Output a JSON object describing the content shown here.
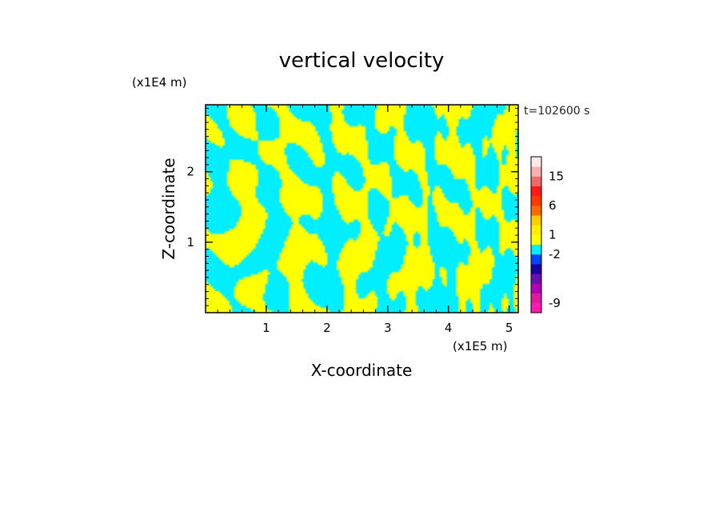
{
  "chart_data": {
    "type": "heatmap",
    "title": "vertical velocity",
    "xlabel": "X-coordinate",
    "ylabel": "Z-coordinate",
    "x_unit": "(x1E5 m)",
    "y_unit": "(x1E4 m)",
    "timestamp": "t=102600 s",
    "xlim": [
      0,
      5.15
    ],
    "ylim": [
      0,
      2.95
    ],
    "x_ticks": [
      1,
      2,
      3,
      4,
      5
    ],
    "y_ticks": [
      1,
      2
    ],
    "x_tick_labels": [
      "1",
      "2",
      "3",
      "4",
      "5"
    ],
    "y_tick_labels": [
      "1",
      "2"
    ],
    "field_colors": {
      "positive": "#ffff00",
      "negative": "#00eeff"
    },
    "colorbar": {
      "bins": [
        {
          "color": "#ff1ab0"
        },
        {
          "color": "#e01a9a"
        },
        {
          "color": "#b300b3"
        },
        {
          "color": "#6a0fb0"
        },
        {
          "color": "#1a00a0"
        },
        {
          "color": "#0044ff"
        },
        {
          "color": "#00eeff"
        },
        {
          "color": "#ffff00"
        },
        {
          "color": "#ffee00"
        },
        {
          "color": "#ffcc00"
        },
        {
          "color": "#ff6a00"
        },
        {
          "color": "#ff3a00"
        },
        {
          "color": "#ff1a1a"
        },
        {
          "color": "#f06a6a"
        },
        {
          "color": "#f7b0b0"
        },
        {
          "color": "#fde8e8"
        }
      ],
      "labels": [
        {
          "text": "-9",
          "level": 1
        },
        {
          "text": "-2",
          "level": 6
        },
        {
          "text": "1",
          "level": 8
        },
        {
          "text": "6",
          "level": 11
        },
        {
          "text": "15",
          "level": 14
        }
      ]
    }
  }
}
